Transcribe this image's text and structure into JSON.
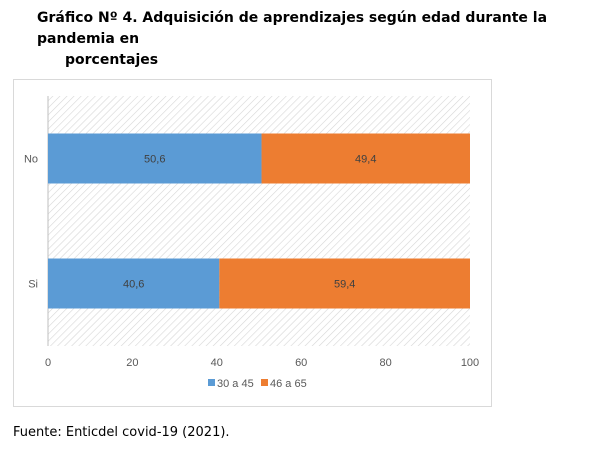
{
  "title_line1": "Gráfico Nº 4. Adquisición de aprendizajes según edad durante la pandemia en",
  "title_line2": "porcentajes",
  "source": "Fuente: Enticdel covid-19 (2021).",
  "chart_data": {
    "type": "bar",
    "orientation": "horizontal",
    "stacked": true,
    "categories": [
      "No",
      "Si"
    ],
    "series": [
      {
        "name": "30 a 45",
        "values": [
          50.6,
          40.6
        ],
        "labels": [
          "50,6",
          "40,6"
        ],
        "color": "#5b9bd5"
      },
      {
        "name": "46 a 65",
        "values": [
          49.4,
          59.4
        ],
        "labels": [
          "49,4",
          "59,4"
        ],
        "color": "#ed7d31"
      }
    ],
    "xlim": [
      0,
      100
    ],
    "xticks": [
      "0",
      "20",
      "40",
      "60",
      "80",
      "100"
    ],
    "legend_position": "bottom",
    "background": "hatched"
  }
}
